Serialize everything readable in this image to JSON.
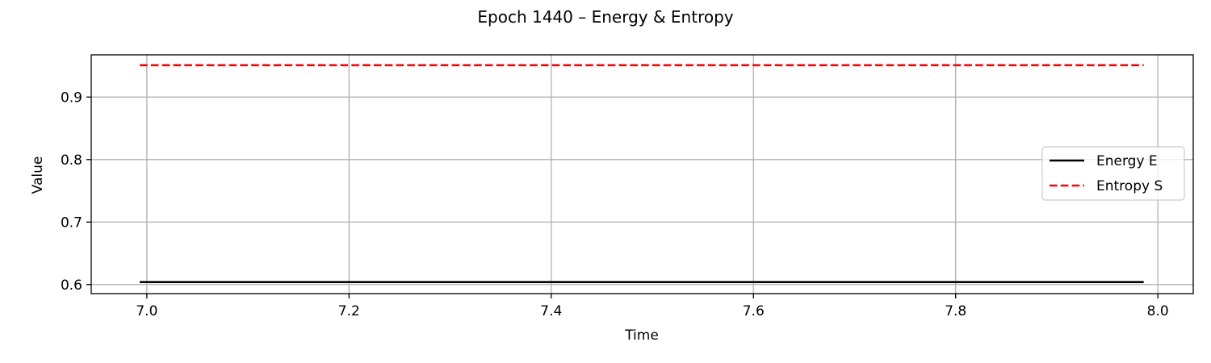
{
  "chart_data": {
    "type": "line",
    "title": "Epoch 1440 – Energy & Entropy",
    "xlabel": "Time",
    "ylabel": "Value",
    "xlim": [
      6.945,
      8.035
    ],
    "ylim": [
      0.5855,
      0.9675
    ],
    "xticks": [
      7.0,
      7.2,
      7.4,
      7.6,
      7.8,
      8.0
    ],
    "xtick_labels": [
      "7.0",
      "7.2",
      "7.4",
      "7.6",
      "7.8",
      "8.0"
    ],
    "yticks": [
      0.6,
      0.7,
      0.8,
      0.9
    ],
    "ytick_labels": [
      "0.6",
      "0.7",
      "0.8",
      "0.9"
    ],
    "grid": true,
    "legend_position": "center-right",
    "series": [
      {
        "name": "Energy E",
        "color": "#000000",
        "dash": "solid",
        "x": [
          6.993,
          7.986
        ],
        "y": [
          0.604,
          0.604
        ]
      },
      {
        "name": "Entropy S",
        "color": "#ff0000",
        "dash": "dashed",
        "x": [
          6.993,
          7.986
        ],
        "y": [
          0.951,
          0.951
        ]
      }
    ]
  }
}
